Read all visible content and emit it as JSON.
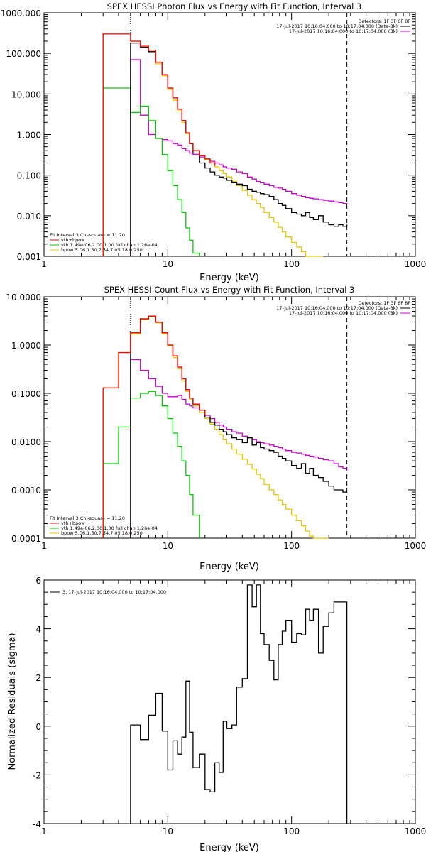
{
  "colors": {
    "data": "#000000",
    "total": "#ff0000",
    "vth": "#00cc00",
    "bpow": "#e6c800",
    "background": "#cc00cc",
    "axes": "#000000"
  },
  "chart_data": [
    {
      "type": "line",
      "title": "SPEX HESSI Photon Flux vs Energy with Fit Function, Interval 3",
      "xlabel": "Energy (keV)",
      "ylabel": "",
      "xscale": "log",
      "yscale": "log",
      "xlim": [
        1,
        1000
      ],
      "ylim": [
        0.001,
        1000
      ],
      "xticks": [
        "1",
        "10",
        "100",
        "1000"
      ],
      "yticks": [
        "0.001",
        "0.010",
        "0.100",
        "1.000",
        "10.000",
        "100.000",
        "1000.000"
      ],
      "legend_top_right": [
        "Detectors: 1F 3F 6F 8F",
        "17-Jul-2017 10:16:04.000 to 10:17:04.000 (Data-Bk)",
        "17-Jul-2017 10:16:04.000 to 10:17:04.000 (Bk)"
      ],
      "legend_bottom_left": [
        "Fit Interval 3   Chi-square = 11.20",
        "vth+bpow",
        "vth 1.49e-06,2.00,1.00   full chan 1.26e-04",
        "bpow 5.06,1.50,7.54,7.05,18.0,250"
      ],
      "fit_start_keV": 5,
      "fit_end_keV": 280,
      "series": [
        {
          "name": "17-Jul-2017 10:16:04.000 to 10:17:04.000 (Data-Bk)",
          "role": "data",
          "x": [
            5,
            6,
            7,
            8,
            9,
            10,
            11,
            12,
            13,
            14,
            15,
            16,
            18,
            20,
            22,
            24,
            26,
            28,
            30,
            33,
            36,
            40,
            44,
            48,
            52,
            56,
            60,
            66,
            72,
            78,
            84,
            90,
            100,
            110,
            120,
            130,
            140,
            150,
            165,
            180,
            200,
            220,
            240,
            260,
            280
          ],
          "y": [
            180,
            140,
            110,
            60,
            30,
            14,
            8,
            4.2,
            2.2,
            1.1,
            0.6,
            0.35,
            0.2,
            0.15,
            0.12,
            0.1,
            0.09,
            0.085,
            0.075,
            0.065,
            0.06,
            0.055,
            0.045,
            0.04,
            0.038,
            0.035,
            0.033,
            0.03,
            0.025,
            0.02,
            0.018,
            0.015,
            0.012,
            0.011,
            0.01,
            0.012,
            0.009,
            0.008,
            0.01,
            0.007,
            0.006,
            0.0055,
            0.006,
            0.0055,
            0.006
          ]
        },
        {
          "name": "vth+bpow",
          "role": "total",
          "x": [
            3,
            4,
            5,
            6,
            7,
            8,
            9,
            10,
            11,
            12,
            13,
            14,
            15,
            16,
            18,
            20,
            22,
            24
          ],
          "y": [
            300,
            300,
            200,
            150,
            120,
            60,
            30,
            14,
            8,
            4.2,
            2.2,
            1.1,
            0.6,
            0.4,
            0.3,
            0.25,
            0.2,
            0.17
          ]
        },
        {
          "name": "vth 1.49e-06,2.00,1.00   full chan 1.26e-04",
          "role": "vth",
          "x": [
            3,
            4,
            5,
            6,
            7,
            8,
            9,
            10,
            11,
            12,
            13,
            14,
            15,
            16,
            18
          ],
          "y": [
            14,
            14,
            3.5,
            5,
            2.2,
            0.8,
            0.32,
            0.13,
            0.055,
            0.025,
            0.012,
            0.005,
            0.0025,
            0.0012,
            0.001
          ]
        },
        {
          "name": "bpow 5.06,1.50,7.54,7.05,18.0,250",
          "role": "bpow",
          "x": [
            3,
            4,
            5,
            6,
            7,
            8,
            9,
            10,
            11,
            12,
            13,
            14,
            15,
            16,
            18,
            20,
            22,
            24,
            26,
            28,
            30,
            33,
            36,
            40,
            44,
            48,
            52,
            56,
            60,
            66,
            72,
            78,
            84,
            90,
            100,
            110,
            120,
            130,
            140,
            150,
            165,
            180
          ],
          "y": [
            300,
            300,
            200,
            140,
            110,
            55,
            28,
            13,
            7,
            3.8,
            2,
            1.05,
            0.6,
            0.4,
            0.3,
            0.24,
            0.2,
            0.16,
            0.13,
            0.11,
            0.09,
            0.07,
            0.055,
            0.042,
            0.032,
            0.025,
            0.02,
            0.016,
            0.012,
            0.009,
            0.007,
            0.0052,
            0.004,
            0.003,
            0.0022,
            0.0017,
            0.0013,
            0.001,
            0.001,
            0.001,
            0.001,
            0.001
          ]
        },
        {
          "name": "17-Jul-2017 10:16:04.000 to 10:17:04.000 (Bk)",
          "role": "background",
          "x": [
            5,
            6,
            7,
            8,
            9,
            10,
            11,
            12,
            13,
            14,
            15,
            16,
            18,
            20,
            22,
            24,
            26,
            28,
            30,
            33,
            36,
            40,
            44,
            48,
            52,
            56,
            60,
            66,
            72,
            78,
            84,
            90,
            100,
            110,
            120,
            130,
            140,
            150,
            165,
            180,
            200,
            220,
            240,
            260,
            280
          ],
          "y": [
            70,
            3,
            1,
            0.8,
            0.75,
            0.7,
            0.6,
            0.55,
            0.45,
            0.4,
            0.35,
            0.32,
            0.28,
            0.25,
            0.22,
            0.2,
            0.18,
            0.16,
            0.15,
            0.14,
            0.12,
            0.11,
            0.09,
            0.08,
            0.07,
            0.065,
            0.06,
            0.055,
            0.05,
            0.048,
            0.045,
            0.04,
            0.035,
            0.032,
            0.03,
            0.028,
            0.027,
            0.026,
            0.025,
            0.024,
            0.023,
            0.022,
            0.021,
            0.02,
            0.019
          ]
        }
      ]
    },
    {
      "type": "line",
      "title": "SPEX HESSI Count Flux vs Energy with Fit Function, Interval 3",
      "xlabel": "Energy (keV)",
      "ylabel": "",
      "xscale": "log",
      "yscale": "log",
      "xlim": [
        1,
        1000
      ],
      "ylim": [
        0.0001,
        10
      ],
      "xticks": [
        "1",
        "10",
        "100",
        "1000"
      ],
      "yticks": [
        "0.0001",
        "0.0010",
        "0.0100",
        "0.1000",
        "1.0000",
        "10.0000"
      ],
      "legend_top_right": [
        "Detectors: 1F 3F 6F 8F",
        "17-Jul-2017 10:16:04.000 to 10:17:04.000 (Data-Bk)",
        "17-Jul-2017 10:16:04.000 to 10:17:04.000 (Bk)"
      ],
      "legend_bottom_left": [
        "Fit Interval 3   Chi-square = 11.20",
        "vth+bpow",
        "vth 1.49e-06,2.00,1.00   full chan 1.26e-04",
        "bpow 5.06,1.50,7.54,7.05,18.0,250"
      ],
      "fit_start_keV": 5,
      "fit_end_keV": 280,
      "series": [
        {
          "name": "17-Jul-2017 10:16:04.000 to 10:17:04.000 (Data-Bk)",
          "role": "data",
          "x": [
            5,
            6,
            7,
            8,
            9,
            10,
            11,
            12,
            13,
            14,
            15,
            16,
            18,
            20,
            22,
            24,
            26,
            28,
            30,
            33,
            36,
            40,
            44,
            48,
            52,
            56,
            60,
            66,
            72,
            78,
            84,
            90,
            100,
            110,
            120,
            130,
            140,
            150,
            165,
            180,
            200,
            220,
            240,
            260,
            280
          ],
          "y": [
            1.8,
            3.5,
            4,
            3,
            1.8,
            1,
            0.6,
            0.35,
            0.2,
            0.12,
            0.08,
            0.06,
            0.045,
            0.032,
            0.025,
            0.022,
            0.018,
            0.016,
            0.014,
            0.012,
            0.011,
            0.0095,
            0.012,
            0.0085,
            0.0095,
            0.0075,
            0.007,
            0.0065,
            0.006,
            0.005,
            0.0045,
            0.004,
            0.0032,
            0.0028,
            0.0035,
            0.0022,
            0.0028,
            0.002,
            0.0018,
            0.0015,
            0.0012,
            0.001,
            0.001,
            0.0009,
            0.0009
          ]
        },
        {
          "name": "vth+bpow",
          "role": "total",
          "x": [
            3,
            4,
            5,
            6,
            7,
            8,
            9,
            10,
            11,
            12,
            13,
            14,
            15,
            16,
            18,
            20
          ],
          "y": [
            0.13,
            0.7,
            1.8,
            3.5,
            4,
            3,
            1.8,
            1,
            0.6,
            0.35,
            0.2,
            0.12,
            0.08,
            0.06,
            0.045,
            0.035
          ]
        },
        {
          "name": "vth 1.49e-06,2.00,1.00   full chan 1.26e-04",
          "role": "vth",
          "x": [
            3,
            4,
            5,
            6,
            7,
            8,
            9,
            10,
            11,
            12,
            13,
            14,
            15,
            16,
            18
          ],
          "y": [
            0.0035,
            0.02,
            0.08,
            0.1,
            0.11,
            0.09,
            0.055,
            0.03,
            0.015,
            0.008,
            0.004,
            0.002,
            0.0008,
            0.0003,
            0.0001
          ]
        },
        {
          "name": "bpow 5.06,1.50,7.54,7.05,18.0,250",
          "role": "bpow",
          "x": [
            3,
            4,
            5,
            6,
            7,
            8,
            9,
            10,
            11,
            12,
            13,
            14,
            15,
            16,
            18,
            20,
            22,
            24,
            26,
            28,
            30,
            33,
            36,
            40,
            44,
            48,
            52,
            56,
            60,
            66,
            72,
            78,
            84,
            90,
            100,
            110,
            120,
            130,
            140,
            150,
            165,
            180,
            200
          ],
          "y": [
            0.13,
            0.7,
            1.7,
            3.4,
            3.9,
            2.9,
            1.7,
            0.95,
            0.55,
            0.32,
            0.18,
            0.11,
            0.075,
            0.055,
            0.04,
            0.03,
            0.023,
            0.018,
            0.014,
            0.011,
            0.009,
            0.007,
            0.0055,
            0.0043,
            0.0034,
            0.0027,
            0.0021,
            0.0017,
            0.0013,
            0.001,
            0.0008,
            0.00062,
            0.0005,
            0.0004,
            0.0003,
            0.00023,
            0.00018,
            0.00014,
            0.00011,
            0.0001,
            0.0001,
            0.0001,
            0.0001
          ]
        },
        {
          "name": "17-Jul-2017 10:16:04.000 to 10:17:04.000 (Bk)",
          "role": "background",
          "x": [
            5,
            6,
            7,
            8,
            9,
            10,
            11,
            12,
            13,
            14,
            15,
            16,
            18,
            20,
            22,
            24,
            26,
            28,
            30,
            33,
            36,
            40,
            44,
            48,
            52,
            56,
            60,
            66,
            72,
            78,
            84,
            90,
            100,
            110,
            120,
            130,
            140,
            150,
            165,
            180,
            200,
            220,
            240,
            260,
            280
          ],
          "y": [
            0.5,
            0.3,
            0.2,
            0.14,
            0.1,
            0.085,
            0.085,
            0.09,
            0.075,
            0.06,
            0.055,
            0.05,
            0.045,
            0.035,
            0.03,
            0.025,
            0.022,
            0.02,
            0.018,
            0.016,
            0.015,
            0.013,
            0.012,
            0.011,
            0.01,
            0.0095,
            0.009,
            0.0085,
            0.008,
            0.0075,
            0.007,
            0.0065,
            0.006,
            0.0058,
            0.0055,
            0.0052,
            0.005,
            0.0048,
            0.0045,
            0.0042,
            0.004,
            0.0035,
            0.003,
            0.0028,
            0.0025
          ]
        }
      ]
    },
    {
      "type": "line",
      "title": "",
      "xlabel": "Energy (keV)",
      "ylabel": "Normalized Residuals (sigma)",
      "xscale": "log",
      "yscale": "linear",
      "xlim": [
        1,
        1000
      ],
      "ylim": [
        -4,
        6
      ],
      "xticks": [
        "1",
        "10",
        "100",
        "1000"
      ],
      "yticks": [
        "-4",
        "-2",
        "0",
        "2",
        "4",
        "6"
      ],
      "legend_top_left": [
        "3, 17-Jul-2017 10:16:04.000 to 10:17:04.000"
      ],
      "series": [
        {
          "name": "3, 17-Jul-2017 10:16:04.000 to 10:17:04.000",
          "role": "data",
          "x": [
            5,
            6,
            7,
            8,
            9,
            10,
            11,
            12,
            13,
            14,
            15,
            16,
            18,
            20,
            22,
            24,
            26,
            28,
            30,
            33,
            36,
            40,
            44,
            48,
            52,
            56,
            60,
            66,
            72,
            78,
            84,
            90,
            100,
            110,
            120,
            130,
            140,
            150,
            165,
            180,
            200,
            220,
            240,
            260,
            280
          ],
          "y": [
            0.05,
            -0.55,
            0.45,
            1.35,
            -0.2,
            -1.8,
            -0.6,
            -1.15,
            -0.45,
            1.85,
            -0.25,
            -1.7,
            -1.15,
            -2.6,
            -2.7,
            -1.5,
            -1.9,
            0.2,
            -0.1,
            0.05,
            1.6,
            1.95,
            5.8,
            4.9,
            5.8,
            3.8,
            3.35,
            2.7,
            1.9,
            3.35,
            3.9,
            4.35,
            3.45,
            3.8,
            3.75,
            4.8,
            4.35,
            4.8,
            3.0,
            4.1,
            4.65,
            5.1,
            5.1,
            5.1,
            -4.0
          ]
        }
      ]
    }
  ]
}
